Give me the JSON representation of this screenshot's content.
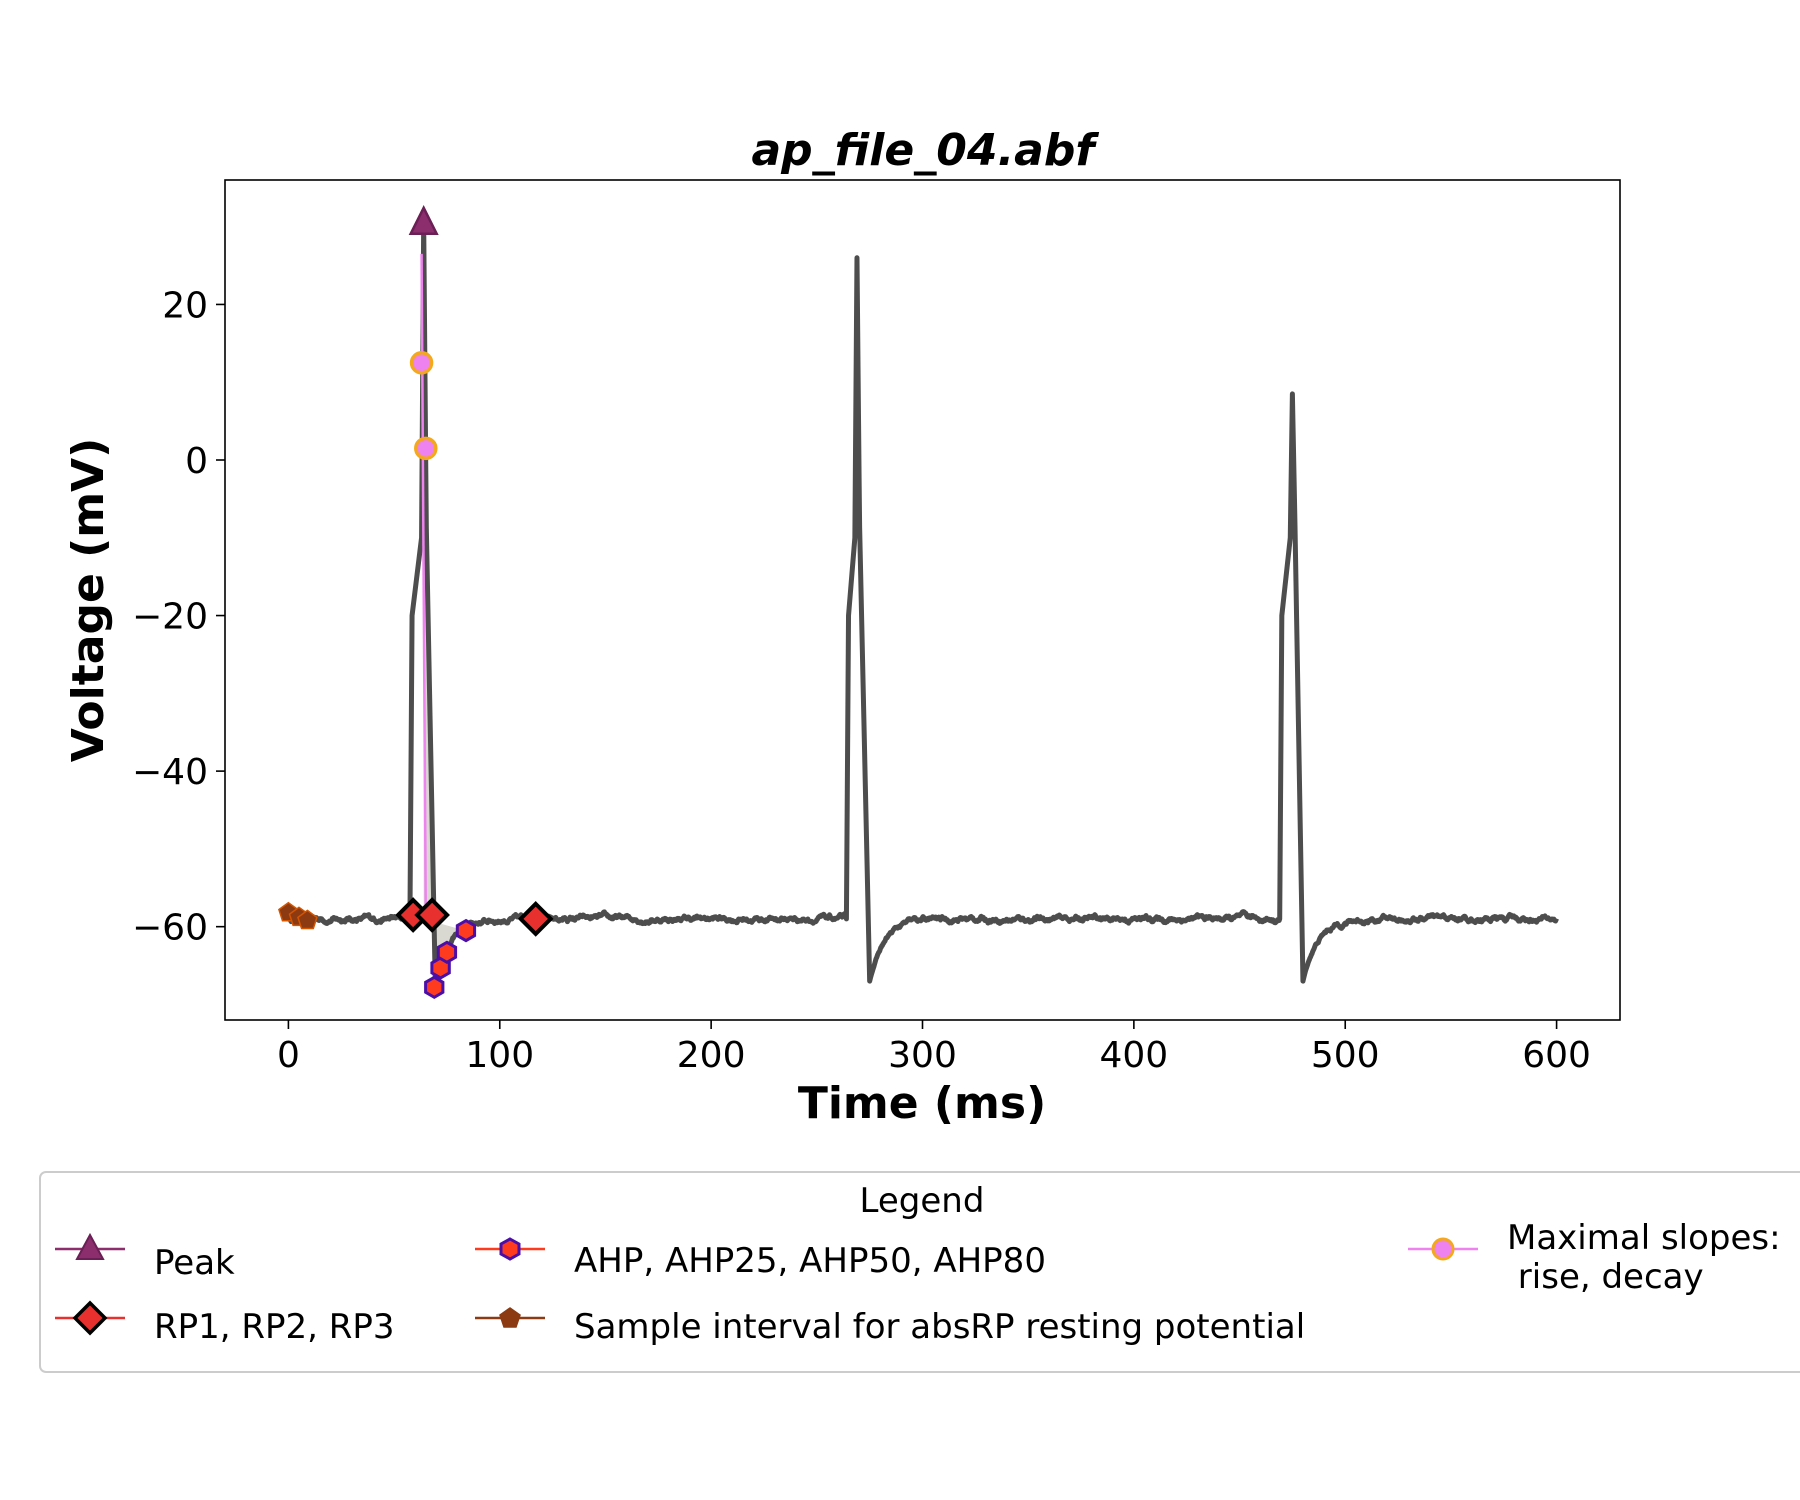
{
  "chart_data": {
    "type": "line",
    "title": "ap_file_04.abf",
    "xlabel": "Time (ms)",
    "ylabel": "Voltage (mV)",
    "xlim": [
      -30,
      630
    ],
    "ylim": [
      -72,
      36
    ],
    "xticks": [
      0,
      100,
      200,
      300,
      400,
      500,
      600
    ],
    "yticks": [
      -60,
      -40,
      -20,
      0,
      20
    ],
    "ytick_labels": [
      "−60",
      "−40",
      "−20",
      "0",
      "20"
    ],
    "grid": false,
    "colors": {
      "trace": "#4d4d4d",
      "peak": "#8c2d6e",
      "rp": "#e8312f",
      "ahp_fill": "#ff3b1f",
      "ahp_edge": "#4b0fa8",
      "sample": "#8b3a12",
      "slope_fill": "#ee82ee",
      "slope_edge": "#f4a81d",
      "shade": "#d9d9d2"
    },
    "trace": {
      "name": "",
      "baseline_mV": -59,
      "spikes": [
        {
          "onset_ms": 57.5,
          "peak_ms": 64,
          "peak_mV": 30.5,
          "trough_ms": 69.5,
          "trough_mV": -67.5
        },
        {
          "onset_ms": 264,
          "peak_ms": 269,
          "peak_mV": 26,
          "trough_ms": 275,
          "trough_mV": -67
        },
        {
          "onset_ms": 469,
          "peak_ms": 475,
          "peak_mV": 8.5,
          "trough_ms": 480,
          "trough_mV": -67
        }
      ],
      "x_end_ms": 600
    },
    "peak": {
      "x": 64,
      "y": 30.5
    },
    "rp_points": [
      {
        "x": 59,
        "y": -58.5
      },
      {
        "x": 68,
        "y": -58.5
      },
      {
        "x": 117,
        "y": -59
      }
    ],
    "ahp_points": [
      {
        "x": 69,
        "y": -67.8
      },
      {
        "x": 72,
        "y": -65.3
      },
      {
        "x": 75,
        "y": -63.3
      },
      {
        "x": 84,
        "y": -60.5
      }
    ],
    "sample_points": [
      {
        "x": 0,
        "y": -58.2
      },
      {
        "x": 5,
        "y": -58.8
      },
      {
        "x": 9,
        "y": -59.2
      }
    ],
    "slope_points": [
      {
        "x": 63,
        "y": 12.5
      },
      {
        "x": 65,
        "y": 1.5
      }
    ],
    "legend": {
      "title": "Legend",
      "placement": "below-plot",
      "entries": [
        {
          "label": "Peak",
          "marker": "triangle"
        },
        {
          "label": "RP1, RP2, RP3",
          "marker": "diamond"
        },
        {
          "label": "AHP, AHP25, AHP50, AHP80",
          "marker": "hexagon"
        },
        {
          "label": "Sample interval for absRP resting potential",
          "marker": "pentagon"
        },
        {
          "label": "Maximal slopes:",
          "label2": " rise, decay",
          "marker": "circle"
        }
      ]
    }
  }
}
